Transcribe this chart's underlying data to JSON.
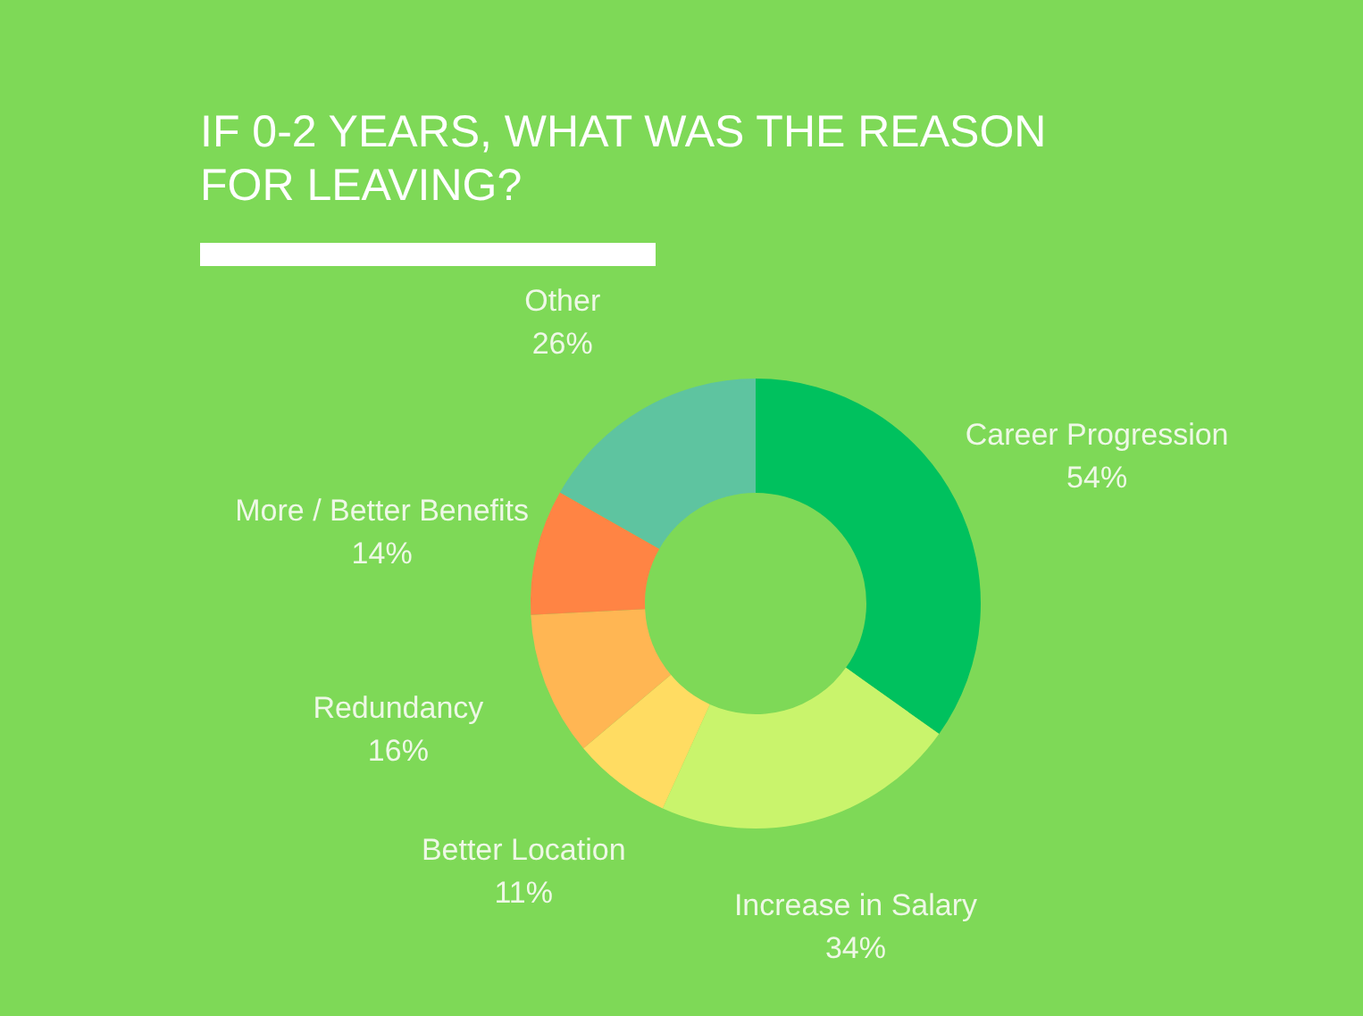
{
  "chart_data": {
    "type": "donut",
    "title": "IF 0-2 YEARS, WHAT WAS THE REASON FOR LEAVING?",
    "categories": [
      "Career Progression",
      "Increase in Salary",
      "Better Location",
      "Redundancy",
      "More / Better Benefits",
      "Other"
    ],
    "values": [
      54,
      34,
      11,
      16,
      14,
      26
    ],
    "value_labels": [
      "54%",
      "34%",
      "11%",
      "16%",
      "14%",
      "26%"
    ],
    "colors": [
      "#00c15e",
      "#c9f46c",
      "#ffdc62",
      "#ffb653",
      "#ff8444",
      "#5ec4a0"
    ]
  }
}
